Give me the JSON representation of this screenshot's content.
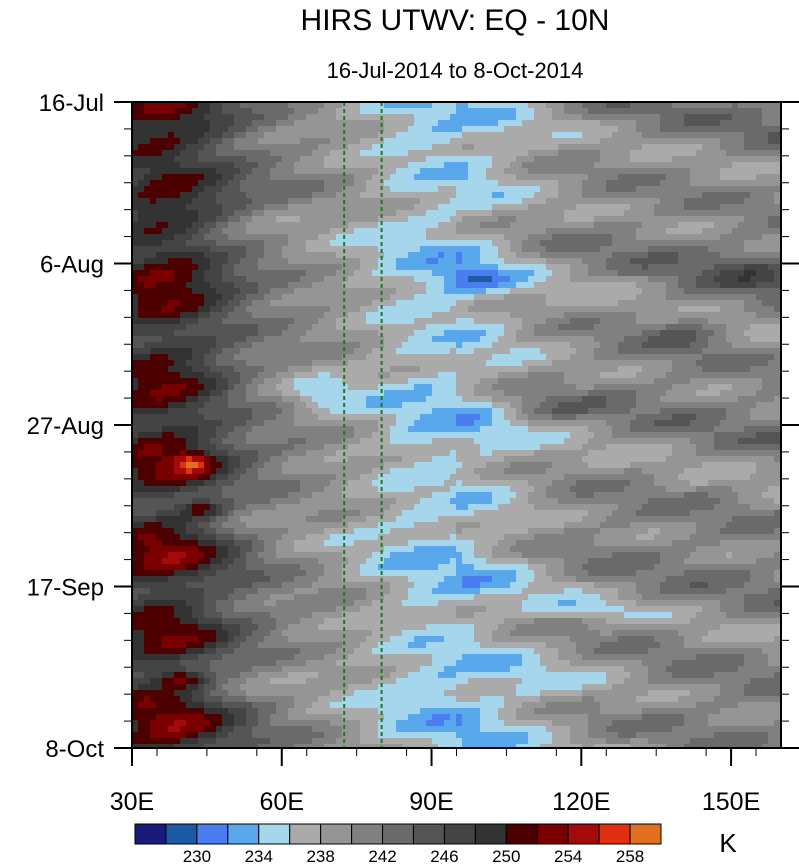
{
  "chart_data": {
    "type": "heatmap",
    "title": "HIRS UTWV: EQ - 10N",
    "subtitle": "16-Jul-2014 to 8-Oct-2014",
    "x_axis": {
      "range": [
        30,
        160
      ],
      "ticks": [
        {
          "value": 30,
          "label": "30E"
        },
        {
          "value": 60,
          "label": "60E"
        },
        {
          "value": 90,
          "label": "90E"
        },
        {
          "value": 120,
          "label": "120E"
        },
        {
          "value": 150,
          "label": "150E"
        }
      ]
    },
    "y_axis": {
      "range_days": [
        0,
        84
      ],
      "orientation": "time increases downward",
      "ticks": [
        {
          "day": 0,
          "label": "16-Jul"
        },
        {
          "day": 21,
          "label": "6-Aug"
        },
        {
          "day": 42,
          "label": "27-Aug"
        },
        {
          "day": 63,
          "label": "17-Sep"
        },
        {
          "day": 84,
          "label": "8-Oct"
        }
      ]
    },
    "reference_lines": [
      {
        "x": 72.5,
        "style": "dashed",
        "color": "#1e7a1e"
      },
      {
        "x": 80,
        "style": "dashed",
        "color": "#1e7a1e"
      }
    ],
    "colorbar": {
      "unit": "K",
      "levels": [
        228,
        230,
        232,
        234,
        236,
        238,
        240,
        242,
        244,
        246,
        248,
        250,
        252,
        254,
        256,
        258
      ],
      "tick_labels": [
        "230",
        "234",
        "238",
        "242",
        "246",
        "250",
        "254",
        "258"
      ],
      "colors": [
        "#1a1a7a",
        "#1c5aa6",
        "#4a7df0",
        "#5aa8ec",
        "#a6d6ec",
        "#aaaaaa",
        "#959595",
        "#808080",
        "#6a6a6a",
        "#555555",
        "#444444",
        "#333333",
        "#4d0000",
        "#7a0000",
        "#a50a0a",
        "#e03010",
        "#e07020"
      ]
    }
  }
}
